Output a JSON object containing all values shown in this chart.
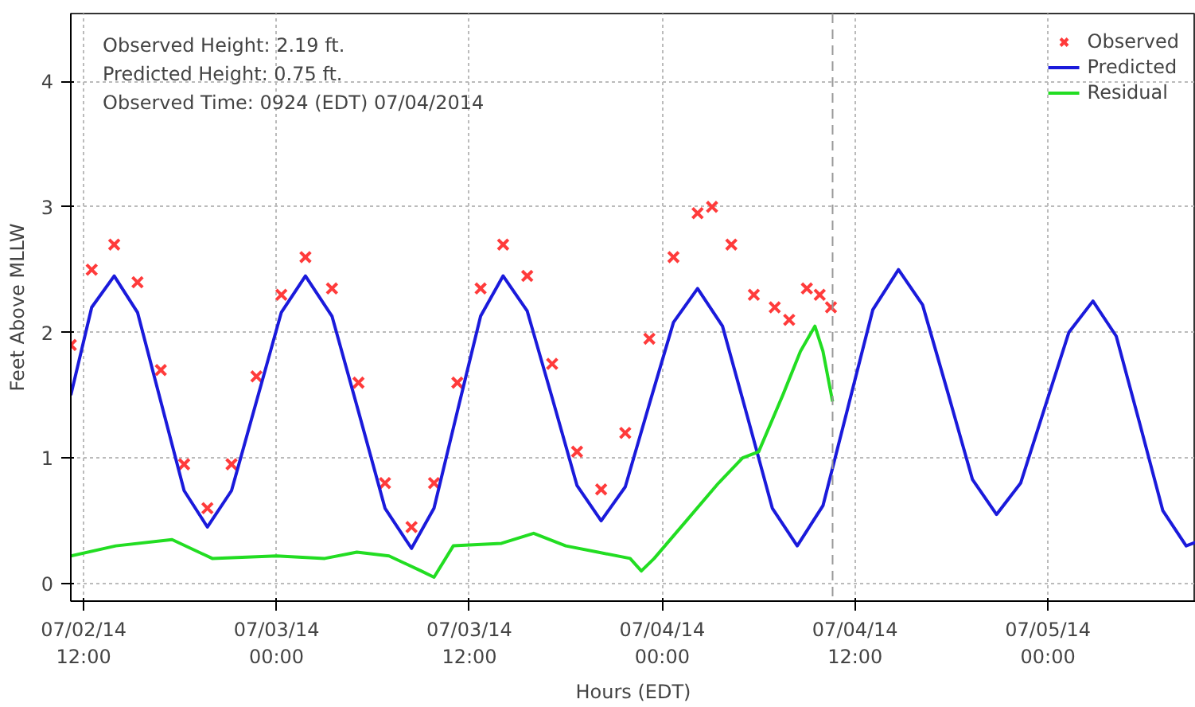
{
  "chart_data": {
    "type": "line",
    "xlabel": "Hours (EDT)",
    "ylabel": "Feet Above MLLW",
    "annotations": [
      "Observed Height:   2.19 ft.",
      "Predicted Height:   0.75 ft.",
      "Observed Time: 0924 (EDT) 07/04/2014"
    ],
    "xlim": [
      "2014-07-02T11:12",
      "2014-07-05T09:12"
    ],
    "ylim": [
      -0.14,
      4.54
    ],
    "xticks": [
      {
        "value": "2014-07-02T12:00",
        "label": "07/02/14\n12:00"
      },
      {
        "value": "2014-07-03T00:00",
        "label": "07/03/14\n00:00"
      },
      {
        "value": "2014-07-03T12:00",
        "label": "07/03/14\n12:00"
      },
      {
        "value": "2014-07-04T00:00",
        "label": "07/04/14\n00:00"
      },
      {
        "value": "2014-07-04T12:00",
        "label": "07/04/14\n12:00"
      },
      {
        "value": "2014-07-05T00:00",
        "label": "07/05/14\n00:00"
      }
    ],
    "yticks": [
      0,
      1,
      2,
      3,
      4
    ],
    "grid": true,
    "legend": "top right",
    "ref_lines": [
      {
        "axis": "x",
        "value": "2014-07-04T10:36",
        "label": null,
        "color": "#999999",
        "line_style": "dashed"
      }
    ],
    "series": [
      {
        "name": "Observed",
        "type": "scatter",
        "marker": "cross",
        "color": "#ff3b3b",
        "x": [
          "2014-07-02T11:12",
          "2014-07-02T12:30",
          "2014-07-02T13:54",
          "2014-07-02T15:21",
          "2014-07-02T16:48",
          "2014-07-02T18:15",
          "2014-07-02T19:42",
          "2014-07-02T21:12",
          "2014-07-02T22:45",
          "2014-07-03T00:18",
          "2014-07-03T01:48",
          "2014-07-03T03:27",
          "2014-07-03T05:06",
          "2014-07-03T06:45",
          "2014-07-03T08:24",
          "2014-07-03T09:48",
          "2014-07-03T11:15",
          "2014-07-03T12:42",
          "2014-07-03T14:06",
          "2014-07-03T15:36",
          "2014-07-03T17:09",
          "2014-07-03T18:42",
          "2014-07-03T20:12",
          "2014-07-03T21:42",
          "2014-07-03T23:12",
          "2014-07-04T00:42",
          "2014-07-04T02:12",
          "2014-07-04T03:06",
          "2014-07-04T04:18",
          "2014-07-04T05:42",
          "2014-07-04T07:00",
          "2014-07-04T07:54",
          "2014-07-04T09:00",
          "2014-07-04T09:48",
          "2014-07-04T10:30"
        ],
        "values": [
          1.9,
          2.5,
          2.7,
          2.4,
          1.7,
          0.95,
          0.6,
          0.95,
          1.65,
          2.3,
          2.6,
          2.35,
          1.6,
          0.8,
          0.45,
          0.8,
          1.6,
          2.35,
          2.7,
          2.45,
          1.75,
          1.05,
          0.75,
          1.2,
          1.95,
          2.6,
          2.95,
          3.0,
          2.7,
          2.3,
          2.2,
          2.1,
          2.35,
          2.3,
          2.2
        ]
      },
      {
        "name": "Predicted",
        "color": "#1a1adb",
        "x": [
          "2014-07-02T11:12",
          "2014-07-02T12:30",
          "2014-07-02T13:54",
          "2014-07-02T15:21",
          "2014-07-02T16:48",
          "2014-07-02T18:15",
          "2014-07-02T19:42",
          "2014-07-02T21:12",
          "2014-07-02T22:45",
          "2014-07-03T00:18",
          "2014-07-03T01:48",
          "2014-07-03T03:27",
          "2014-07-03T05:06",
          "2014-07-03T06:45",
          "2014-07-03T08:24",
          "2014-07-03T09:48",
          "2014-07-03T11:15",
          "2014-07-03T12:42",
          "2014-07-03T14:06",
          "2014-07-03T15:36",
          "2014-07-03T17:09",
          "2014-07-03T18:42",
          "2014-07-03T20:12",
          "2014-07-03T21:42",
          "2014-07-03T23:12",
          "2014-07-04T00:42",
          "2014-07-04T02:12",
          "2014-07-04T03:45",
          "2014-07-04T05:18",
          "2014-07-04T06:51",
          "2014-07-04T08:24",
          "2014-07-04T10:00",
          "2014-07-04T11:33",
          "2014-07-04T13:06",
          "2014-07-04T14:42",
          "2014-07-04T16:12",
          "2014-07-04T17:45",
          "2014-07-04T19:18",
          "2014-07-04T20:48",
          "2014-07-04T22:18",
          "2014-07-04T23:48",
          "2014-07-05T01:18",
          "2014-07-05T02:48",
          "2014-07-05T04:15",
          "2014-07-05T05:42",
          "2014-07-05T07:09",
          "2014-07-05T08:36",
          "2014-07-05T09:12"
        ],
        "values": [
          1.5,
          2.2,
          2.45,
          2.16,
          1.45,
          0.74,
          0.45,
          0.74,
          1.45,
          2.16,
          2.45,
          2.13,
          1.37,
          0.6,
          0.28,
          0.6,
          1.37,
          2.13,
          2.45,
          2.17,
          1.48,
          0.78,
          0.5,
          0.77,
          1.43,
          2.08,
          2.35,
          2.05,
          1.33,
          0.6,
          0.3,
          0.62,
          1.4,
          2.18,
          2.5,
          2.22,
          1.53,
          0.83,
          0.55,
          0.8,
          1.4,
          2.0,
          2.25,
          1.97,
          1.28,
          0.58,
          0.3,
          0.33
        ]
      },
      {
        "name": "Residual",
        "color": "#22dd22",
        "x": [
          "2014-07-02T11:12",
          "2014-07-02T14:00",
          "2014-07-02T17:30",
          "2014-07-02T20:00",
          "2014-07-03T00:00",
          "2014-07-03T03:00",
          "2014-07-03T05:00",
          "2014-07-03T07:00",
          "2014-07-03T09:00",
          "2014-07-03T09:48",
          "2014-07-03T11:00",
          "2014-07-03T14:00",
          "2014-07-03T16:00",
          "2014-07-03T18:00",
          "2014-07-03T20:00",
          "2014-07-03T22:00",
          "2014-07-03T22:42",
          "2014-07-03T23:30",
          "2014-07-04T01:30",
          "2014-07-04T03:30",
          "2014-07-04T05:00",
          "2014-07-04T06:00",
          "2014-07-04T07:30",
          "2014-07-04T08:36",
          "2014-07-04T09:30",
          "2014-07-04T10:00",
          "2014-07-04T10:36"
        ],
        "values": [
          0.22,
          0.3,
          0.35,
          0.2,
          0.22,
          0.2,
          0.25,
          0.22,
          0.1,
          0.05,
          0.3,
          0.32,
          0.4,
          0.3,
          0.25,
          0.2,
          0.1,
          0.2,
          0.5,
          0.8,
          1.0,
          1.05,
          1.5,
          1.85,
          2.05,
          1.85,
          1.45
        ]
      }
    ]
  }
}
